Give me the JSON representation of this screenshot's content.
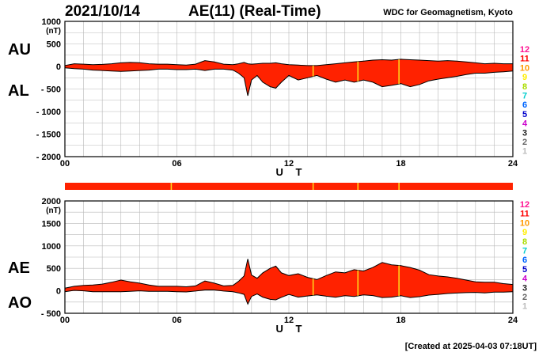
{
  "header": {
    "date": "2021/10/14",
    "title": "AE(11) (Real-Time)",
    "org": "WDC for Geomagnetism, Kyoto",
    "created": "[Created at 2025-04-03 07:18UT]"
  },
  "colors": {
    "fill": "#ff2200",
    "outline": "#000000",
    "grid": "#b8b8b8",
    "marker": "#ffd21a"
  },
  "level_scale": {
    "labels": [
      "12",
      "11",
      "10",
      "9",
      "8",
      "7",
      "6",
      "5",
      "4",
      "3",
      "2",
      "1"
    ],
    "colors": [
      "#ff1493",
      "#ff0000",
      "#ff9900",
      "#ffee00",
      "#aadd00",
      "#00cccc",
      "#0066ff",
      "#0000cc",
      "#cc00cc",
      "#222222",
      "#666666",
      "#bbbbbb"
    ]
  },
  "chart_data": [
    {
      "name": "AU/AL",
      "type": "area",
      "upper_label": "AU",
      "lower_label": "AL",
      "unit": "(nT)",
      "xlabel": "U T",
      "xlim": [
        0,
        24
      ],
      "ylim": [
        -2000,
        1000
      ],
      "yticks": [
        1000,
        500,
        0,
        -500,
        -1000,
        -1500,
        -2000
      ],
      "ytick_labels": [
        "1000",
        "500",
        "0",
        "- 500",
        "- 1000",
        "- 1500",
        "- 2000"
      ],
      "xticks": [
        0,
        6,
        12,
        18,
        24
      ],
      "xtick_labels": [
        "00",
        "06",
        "12",
        "18",
        "24"
      ],
      "grid": true,
      "x": [
        0,
        0.5,
        1,
        1.5,
        2,
        2.5,
        3,
        3.5,
        4,
        4.5,
        5,
        5.5,
        6,
        6.5,
        7,
        7.5,
        8,
        8.5,
        9,
        9.3,
        9.6,
        9.8,
        10,
        10.3,
        10.6,
        11,
        11.3,
        11.6,
        12,
        12.5,
        13,
        13.5,
        14,
        14.5,
        15,
        15.5,
        16,
        16.5,
        17,
        17.5,
        18,
        18.5,
        19,
        19.5,
        20,
        20.5,
        21,
        21.5,
        22,
        22.5,
        23,
        23.5,
        24
      ],
      "series": [
        {
          "name": "AU",
          "values": [
            20,
            60,
            50,
            40,
            45,
            60,
            80,
            90,
            85,
            60,
            50,
            50,
            40,
            30,
            50,
            130,
            100,
            50,
            40,
            60,
            90,
            60,
            50,
            60,
            70,
            70,
            80,
            60,
            40,
            30,
            20,
            20,
            40,
            60,
            80,
            100,
            120,
            140,
            150,
            140,
            160,
            150,
            140,
            130,
            120,
            130,
            120,
            100,
            80,
            60,
            70,
            60,
            60
          ]
        },
        {
          "name": "AL",
          "values": [
            -30,
            -50,
            -60,
            -80,
            -90,
            -100,
            -110,
            -100,
            -90,
            -80,
            -60,
            -60,
            -70,
            -70,
            -60,
            -90,
            -60,
            -60,
            -80,
            -150,
            -250,
            -650,
            -300,
            -200,
            -350,
            -450,
            -480,
            -350,
            -200,
            -300,
            -250,
            -200,
            -280,
            -350,
            -300,
            -350,
            -300,
            -350,
            -450,
            -420,
            -380,
            -450,
            -400,
            -320,
            -280,
            -250,
            -220,
            -180,
            -150,
            -150,
            -130,
            -120,
            -100
          ]
        }
      ],
      "markers": [
        13.3,
        15.7,
        17.9
      ]
    },
    {
      "name": "AE/AO",
      "type": "area",
      "upper_label": "AE",
      "lower_label": "AO",
      "unit": "(nT)",
      "xlabel": "U T",
      "xlim": [
        0,
        24
      ],
      "ylim": [
        -500,
        2000
      ],
      "yticks": [
        2000,
        1500,
        1000,
        500,
        0,
        -500
      ],
      "ytick_labels": [
        "2000",
        "1500",
        "1000",
        "500",
        "0",
        "- 500"
      ],
      "xticks": [
        0,
        6,
        12,
        18,
        24
      ],
      "xtick_labels": [
        "00",
        "06",
        "12",
        "18",
        "24"
      ],
      "grid": true,
      "x": [
        0,
        0.5,
        1,
        1.5,
        2,
        2.5,
        3,
        3.5,
        4,
        4.5,
        5,
        5.5,
        6,
        6.5,
        7,
        7.5,
        8,
        8.5,
        9,
        9.3,
        9.6,
        9.8,
        10,
        10.3,
        10.6,
        11,
        11.3,
        11.6,
        12,
        12.5,
        13,
        13.5,
        14,
        14.5,
        15,
        15.5,
        16,
        16.5,
        17,
        17.5,
        18,
        18.5,
        19,
        19.5,
        20,
        20.5,
        21,
        21.5,
        22,
        22.5,
        23,
        23.5,
        24
      ],
      "series": [
        {
          "name": "AE",
          "values": [
            60,
            100,
            120,
            130,
            150,
            190,
            240,
            200,
            170,
            130,
            100,
            100,
            100,
            90,
            110,
            220,
            170,
            110,
            120,
            210,
            330,
            710,
            350,
            280,
            400,
            500,
            550,
            400,
            340,
            380,
            300,
            250,
            340,
            420,
            400,
            470,
            440,
            520,
            630,
            580,
            560,
            520,
            460,
            360,
            330,
            310,
            280,
            240,
            200,
            190,
            190,
            160,
            140
          ]
        },
        {
          "name": "AO",
          "values": [
            -20,
            10,
            0,
            -20,
            -20,
            -20,
            -20,
            -10,
            0,
            -10,
            -10,
            -10,
            -20,
            -25,
            -5,
            20,
            20,
            -5,
            -20,
            -45,
            -80,
            -295,
            -125,
            -70,
            -140,
            -190,
            -200,
            -145,
            -80,
            -140,
            -115,
            -90,
            -120,
            -145,
            -110,
            -125,
            -90,
            -105,
            -150,
            -140,
            -110,
            -150,
            -130,
            -95,
            -80,
            -60,
            -50,
            -40,
            -35,
            -45,
            -30,
            -30,
            -20
          ]
        }
      ],
      "markers": [
        13.3,
        15.7,
        17.9
      ]
    },
    {
      "name": "activity-strip",
      "type": "bar",
      "xlim": [
        0,
        24
      ],
      "markers": [
        5.7,
        13.3,
        15.7,
        17.9
      ]
    }
  ]
}
